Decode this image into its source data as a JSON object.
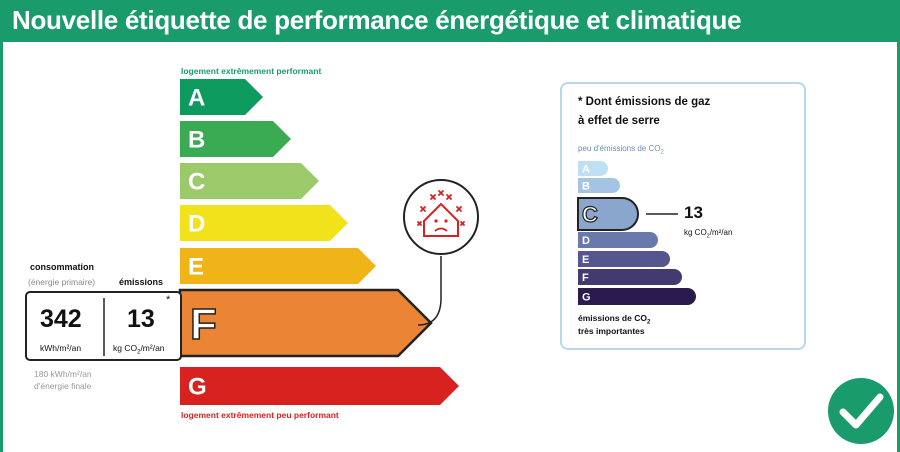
{
  "header": {
    "title": "Nouvelle étiquette de performance énergétique et climatique"
  },
  "dpe": {
    "top_label": "logement extrêmement performant",
    "bottom_label": "logement extrêmement peu performant",
    "classes": [
      {
        "letter": "A",
        "color": "#0d9a5e"
      },
      {
        "letter": "B",
        "color": "#3aab52"
      },
      {
        "letter": "C",
        "color": "#9cc96a"
      },
      {
        "letter": "D",
        "color": "#f2e21c"
      },
      {
        "letter": "E",
        "color": "#f0b419"
      },
      {
        "letter": "F",
        "color": "#eb8535",
        "selected": true
      },
      {
        "letter": "G",
        "color": "#d7221f"
      }
    ]
  },
  "consumption": {
    "header": "consommation",
    "sub": "(énergie primaire)",
    "value": "342",
    "unit": "kWh/m²/an",
    "final_line1": "180 kWh/m²/an",
    "final_line2": "d'énergie finale"
  },
  "emissions": {
    "header": "émissions",
    "value": "13",
    "unit_prefix": "kg CO",
    "unit_sub": "2",
    "unit_suffix": "/m²/an",
    "asterisk": "*"
  },
  "ges": {
    "title_line1": "* Dont émissions de gaz",
    "title_line2": "à effet de serre",
    "top_prefix": "peu d'émissions de CO",
    "top_sub": "2",
    "bottom_prefix": "émissions de CO",
    "bottom_sub": "2",
    "bottom_line2": "très importantes",
    "value": "13",
    "unit_prefix": "kg CO",
    "unit_sub": "2",
    "unit_suffix": "/m²/an",
    "classes": [
      {
        "letter": "A",
        "color": "#bfe0f2"
      },
      {
        "letter": "B",
        "color": "#a5c4e3"
      },
      {
        "letter": "C",
        "color": "#8aa6cc",
        "selected": true
      },
      {
        "letter": "D",
        "color": "#6a79ab"
      },
      {
        "letter": "E",
        "color": "#55568f"
      },
      {
        "letter": "F",
        "color": "#433a72"
      },
      {
        "letter": "G",
        "color": "#2b1b4d"
      }
    ]
  },
  "colors": {
    "brand": "#1a9b6b",
    "panel_border": "#b8d8ea",
    "warning": "#d7221f"
  },
  "icons": {
    "house": "house-pollution-icon",
    "check": "check-icon"
  }
}
